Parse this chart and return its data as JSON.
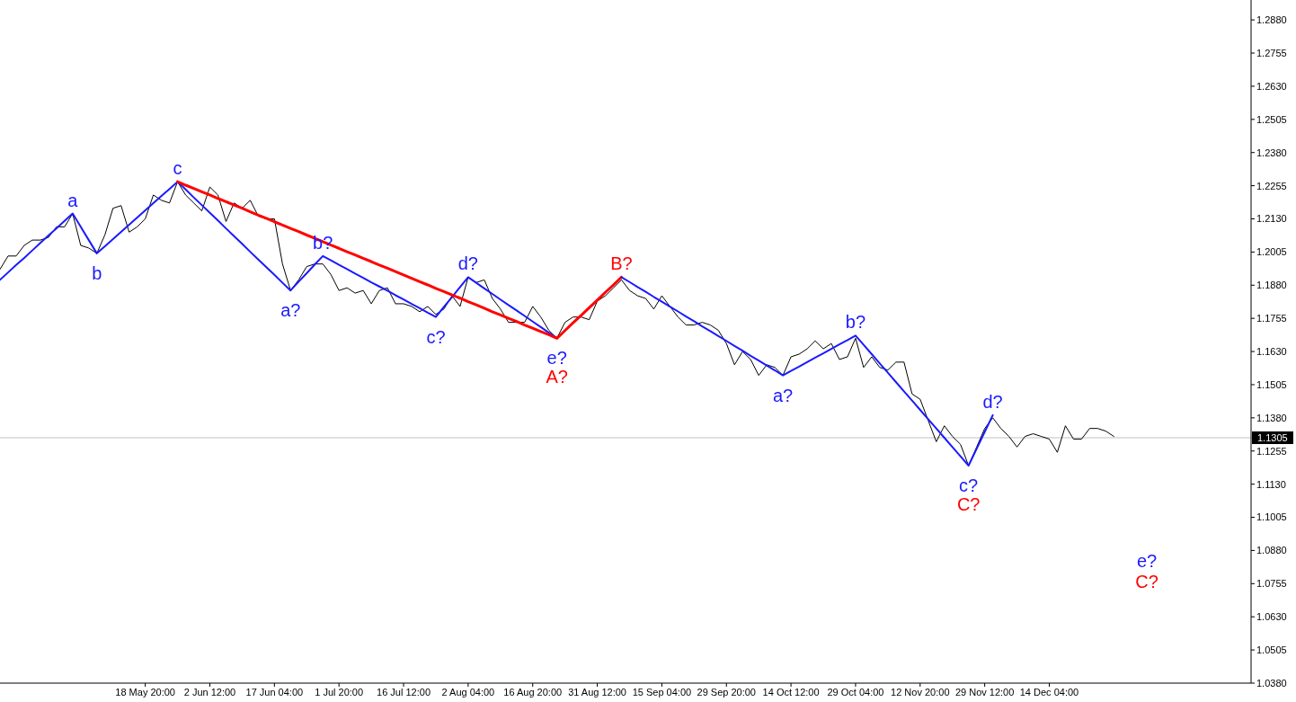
{
  "chart_data": {
    "type": "line",
    "categories": [
      null,
      null,
      null,
      null,
      null,
      null,
      null,
      null,
      null,
      null,
      null,
      null,
      null,
      null,
      null,
      null,
      null,
      null,
      "18 May 20:00",
      null,
      null,
      null,
      null,
      null,
      null,
      null,
      "2 Jun 12:00",
      null,
      null,
      null,
      null,
      null,
      null,
      null,
      "17 Jun 04:00",
      null,
      null,
      null,
      null,
      null,
      null,
      null,
      "1 Jul 20:00",
      null,
      null,
      null,
      null,
      null,
      null,
      null,
      "16 Jul 12:00",
      null,
      null,
      null,
      null,
      null,
      null,
      null,
      "2 Aug 04:00",
      null,
      null,
      null,
      null,
      null,
      null,
      null,
      "16 Aug 20:00",
      null,
      null,
      null,
      null,
      null,
      null,
      null,
      "31 Aug 12:00",
      null,
      null,
      null,
      null,
      null,
      null,
      null,
      "15 Sep 04:00",
      null,
      null,
      null,
      null,
      null,
      null,
      null,
      "29 Sep 20:00",
      null,
      null,
      null,
      null,
      null,
      null,
      null,
      "14 Oct 12:00",
      null,
      null,
      null,
      null,
      null,
      null,
      null,
      "29 Oct 04:00",
      null,
      null,
      null,
      null,
      null,
      null,
      null,
      "12 Nov 20:00",
      null,
      null,
      null,
      null,
      null,
      null,
      null,
      "29 Nov 12:00",
      null,
      null,
      null,
      null,
      null,
      null,
      null,
      "14 Dec 04:00",
      null,
      null,
      null,
      null,
      null,
      null,
      null,
      null,
      null,
      null,
      null,
      null,
      null,
      null,
      null,
      null,
      null,
      null,
      null,
      null,
      null,
      null,
      null,
      null,
      null
    ],
    "ylim": [
      1.038,
      1.2955
    ],
    "yticks": [
      {
        "value": 1.038,
        "label": "1.0380"
      },
      {
        "value": 1.0505,
        "label": "1.0505"
      },
      {
        "value": 1.063,
        "label": "1.0630"
      },
      {
        "value": 1.0755,
        "label": "1.0755"
      },
      {
        "value": 1.088,
        "label": "1.0880"
      },
      {
        "value": 1.1005,
        "label": "1.1005"
      },
      {
        "value": 1.113,
        "label": "1.1130"
      },
      {
        "value": 1.1255,
        "label": "1.1255"
      },
      {
        "value": 1.138,
        "label": "1.1380"
      },
      {
        "value": 1.1505,
        "label": "1.1505"
      },
      {
        "value": 1.163,
        "label": "1.1630"
      },
      {
        "value": 1.1755,
        "label": "1.1755"
      },
      {
        "value": 1.188,
        "label": "1.1880"
      },
      {
        "value": 1.2005,
        "label": "1.2005"
      },
      {
        "value": 1.213,
        "label": "1.2130"
      },
      {
        "value": 1.2255,
        "label": "1.2255"
      },
      {
        "value": 1.238,
        "label": "1.2380"
      },
      {
        "value": 1.2505,
        "label": "1.2505"
      },
      {
        "value": 1.263,
        "label": "1.2630"
      },
      {
        "value": 1.2755,
        "label": "1.2755"
      },
      {
        "value": 1.288,
        "label": "1.2880"
      }
    ],
    "series": [
      {
        "color": "#000000",
        "values": [
          1.194,
          1.199,
          1.199,
          1.203,
          1.205,
          1.205,
          1.206,
          1.21,
          1.21,
          1.215,
          1.203,
          1.202,
          1.2,
          1.207,
          1.217,
          1.218,
          1.208,
          1.21,
          1.213,
          1.222,
          1.22,
          1.219,
          1.227,
          1.222,
          1.219,
          1.216,
          1.225,
          1.222,
          1.212,
          1.219,
          1.217,
          1.22,
          1.214,
          1.213,
          1.213,
          1.196,
          1.186,
          1.19,
          1.195,
          1.196,
          1.196,
          1.192,
          1.186,
          1.187,
          1.185,
          1.186,
          1.181,
          1.186,
          1.187,
          1.181,
          1.181,
          1.18,
          1.178,
          1.18,
          1.177,
          1.179,
          1.184,
          1.18,
          1.191,
          1.189,
          1.19,
          1.183,
          1.179,
          1.174,
          1.174,
          1.174,
          1.18,
          1.176,
          1.171,
          1.168,
          1.174,
          1.176,
          1.176,
          1.175,
          1.182,
          1.184,
          1.187,
          1.19,
          1.186,
          1.184,
          1.183,
          1.179,
          1.184,
          1.18,
          1.176,
          1.173,
          1.173,
          1.174,
          1.173,
          1.171,
          1.166,
          1.158,
          1.163,
          1.16,
          1.154,
          1.158,
          1.157,
          1.154,
          1.161,
          1.162,
          1.164,
          1.167,
          1.164,
          1.166,
          1.16,
          1.161,
          1.168,
          1.157,
          1.161,
          1.157,
          1.156,
          1.159,
          1.159,
          1.147,
          1.145,
          1.137,
          1.129,
          1.135,
          1.131,
          1.128,
          1.12,
          1.127,
          1.134,
          1.138,
          1.134,
          1.131,
          1.127,
          1.131,
          1.132,
          1.131,
          1.13,
          1.125,
          1.135,
          1.13,
          1.13,
          1.134,
          1.134,
          1.133,
          1.131,
          null,
          null,
          null,
          null,
          null,
          null,
          null,
          null,
          null,
          null,
          null,
          null,
          null,
          null,
          null,
          null,
          null
        ]
      },
      {
        "color": "#1a1aff",
        "values": [
          1.19,
          1.1928,
          1.1956,
          1.1983,
          1.2011,
          1.2039,
          1.2067,
          1.2094,
          1.2122,
          1.215,
          1.21,
          1.205,
          1.2,
          1.2027,
          1.2054,
          1.2081,
          1.2108,
          1.2135,
          1.2162,
          1.2189,
          1.2216,
          1.2243,
          1.227,
          1.2241,
          1.2211,
          1.2182,
          1.2153,
          1.2124,
          1.2094,
          1.2065,
          1.2036,
          1.2006,
          1.1977,
          1.1948,
          1.1919,
          1.1889,
          1.186,
          1.1893,
          1.1925,
          1.1958,
          1.199,
          1.1974,
          1.1957,
          1.1941,
          1.1924,
          1.1908,
          1.1891,
          1.1875,
          1.1859,
          1.1842,
          1.1826,
          1.1809,
          1.1793,
          1.1776,
          1.176,
          1.1798,
          1.1835,
          1.1873,
          1.191,
          1.1889,
          1.1868,
          1.1847,
          1.1826,
          1.1805,
          1.1785,
          1.1764,
          1.1743,
          1.1722,
          1.1701,
          1.168,
          null,
          null,
          null,
          null,
          null,
          null,
          null,
          null,
          null,
          null,
          null,
          null,
          null,
          null,
          null,
          null,
          null,
          null,
          null,
          null,
          null,
          null,
          null,
          null,
          null,
          null,
          null,
          null,
          null,
          null,
          null,
          null,
          null,
          null,
          null,
          null,
          null,
          null,
          null,
          null,
          null,
          null,
          null,
          null,
          null,
          null,
          null,
          null,
          null,
          null,
          null,
          null,
          null,
          null,
          null,
          null,
          null,
          null,
          null,
          null,
          null,
          null,
          null,
          null,
          null,
          null,
          null,
          null,
          null,
          null,
          null,
          null,
          null,
          null,
          null,
          null,
          null,
          null,
          null,
          null,
          null,
          null,
          null,
          null,
          null,
          null
        ]
      },
      {
        "color": "#ff0000",
        "values": [
          null,
          null,
          null,
          null,
          null,
          null,
          null,
          null,
          null,
          null,
          null,
          null,
          null,
          null,
          null,
          null,
          null,
          null,
          null,
          null,
          null,
          null,
          1.227,
          1.2257,
          1.2245,
          1.2232,
          1.222,
          1.2207,
          1.2195,
          1.2182,
          1.217,
          1.2157,
          1.2144,
          1.2132,
          1.2119,
          1.2107,
          1.2094,
          1.2082,
          1.2069,
          1.2057,
          1.2044,
          1.2031,
          1.2019,
          1.2006,
          1.1994,
          1.1981,
          1.1969,
          1.1956,
          1.1944,
          1.1931,
          1.1919,
          1.1906,
          1.1893,
          1.1881,
          1.1868,
          1.1856,
          1.1843,
          1.1831,
          1.1818,
          1.1806,
          1.1793,
          1.178,
          1.1768,
          1.1755,
          1.1743,
          1.173,
          1.1718,
          1.1705,
          1.1693,
          1.168,
          1.1709,
          1.1738,
          1.1766,
          1.1795,
          1.1824,
          1.1853,
          1.1881,
          1.191,
          null,
          null,
          null,
          null,
          null,
          null,
          null,
          null,
          null,
          null,
          null,
          null,
          null,
          null,
          null,
          null,
          null,
          null,
          null,
          null,
          null,
          null,
          null,
          null,
          null,
          null,
          null,
          null,
          null,
          null,
          null,
          null,
          null,
          null,
          null,
          null,
          null,
          null,
          null,
          null,
          null,
          null,
          null,
          null,
          null,
          null,
          null,
          null,
          null,
          null,
          null,
          null,
          null,
          null,
          null,
          null,
          null,
          null,
          null,
          null,
          null,
          null,
          null,
          null,
          null,
          null,
          null,
          null,
          null,
          null,
          null,
          null,
          null,
          null,
          null,
          null,
          null,
          null
        ]
      },
      {
        "color": "#1a1aff",
        "values": [
          null,
          null,
          null,
          null,
          null,
          null,
          null,
          null,
          null,
          null,
          null,
          null,
          null,
          null,
          null,
          null,
          null,
          null,
          null,
          null,
          null,
          null,
          null,
          null,
          null,
          null,
          null,
          null,
          null,
          null,
          null,
          null,
          null,
          null,
          null,
          null,
          null,
          null,
          null,
          null,
          null,
          null,
          null,
          null,
          null,
          null,
          null,
          null,
          null,
          null,
          null,
          null,
          null,
          null,
          null,
          null,
          null,
          null,
          null,
          null,
          null,
          null,
          null,
          null,
          null,
          null,
          null,
          null,
          null,
          null,
          null,
          null,
          null,
          null,
          null,
          null,
          null,
          1.191,
          1.1892,
          1.1873,
          1.1855,
          1.1836,
          1.1818,
          1.1799,
          1.1781,
          1.1762,
          1.1744,
          1.1725,
          1.1707,
          1.1688,
          1.167,
          1.1651,
          1.1633,
          1.1614,
          1.1596,
          1.1577,
          1.1559,
          1.154,
          1.1557,
          1.1573,
          1.159,
          1.1607,
          1.1623,
          1.164,
          1.1657,
          1.1673,
          1.169,
          1.1655,
          1.162,
          1.1585,
          1.155,
          1.1515,
          1.148,
          1.1445,
          1.141,
          1.1375,
          1.134,
          1.1305,
          1.127,
          1.1235,
          1.12,
          1.1263,
          1.1327,
          1.139,
          null,
          null,
          null,
          null,
          null,
          null,
          null,
          null,
          null,
          null,
          null,
          null,
          null,
          null,
          null,
          null,
          null,
          null,
          null,
          null,
          null,
          null,
          null,
          null,
          null,
          null,
          null,
          null,
          null,
          null,
          null,
          null
        ]
      }
    ],
    "ref_lines": [
      {
        "axis": "y",
        "value": 1.1305,
        "label": "1.1305",
        "color": "#c0c0c0"
      }
    ],
    "annotations": [
      "a",
      "b",
      "c",
      "a?",
      "b?",
      "c?",
      "d?",
      "e?",
      "A?",
      "B?",
      "a?",
      "b?",
      "c?",
      "C?",
      "d?",
      "e?",
      "C?"
    ]
  }
}
